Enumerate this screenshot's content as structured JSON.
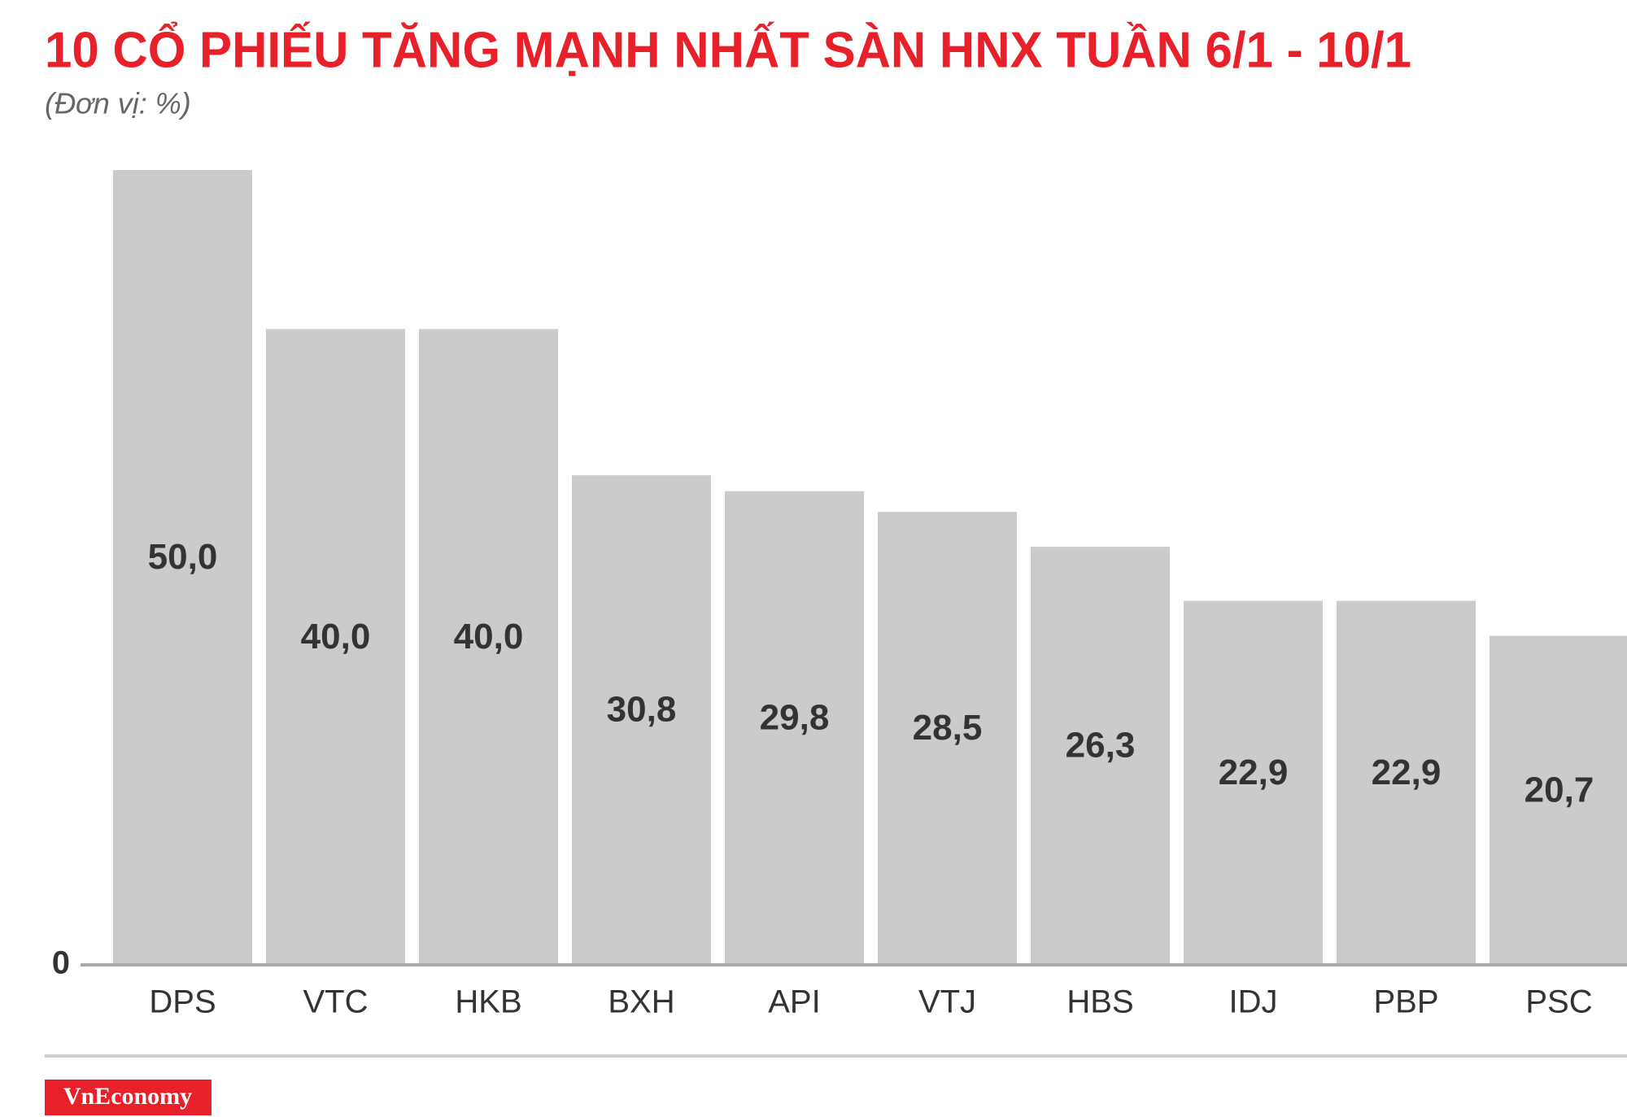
{
  "chart_data": {
    "type": "bar",
    "title": "10 CỔ PHIẾU TĂNG MẠNH NHẤT SÀN HNX TUẦN 6/1 - 10/1",
    "subtitle": "(Đơn vị: %)",
    "categories": [
      "DPS",
      "VTC",
      "HKB",
      "BXH",
      "API",
      "VTJ",
      "HBS",
      "IDJ",
      "PBP",
      "PSC"
    ],
    "values": [
      50,
      40,
      40,
      30.8,
      29.8,
      28.5,
      26.3,
      22.9,
      22.9,
      20.7
    ],
    "value_labels": [
      "50,0",
      "40,0",
      "40,0",
      "30,8",
      "29,8",
      "28,5",
      "26,3",
      "22,9",
      "22,9",
      "20,7"
    ],
    "color": "#cccbcb",
    "ylim": [
      0,
      50
    ],
    "yticks": [
      0
    ]
  },
  "brand": "VnEconomy"
}
